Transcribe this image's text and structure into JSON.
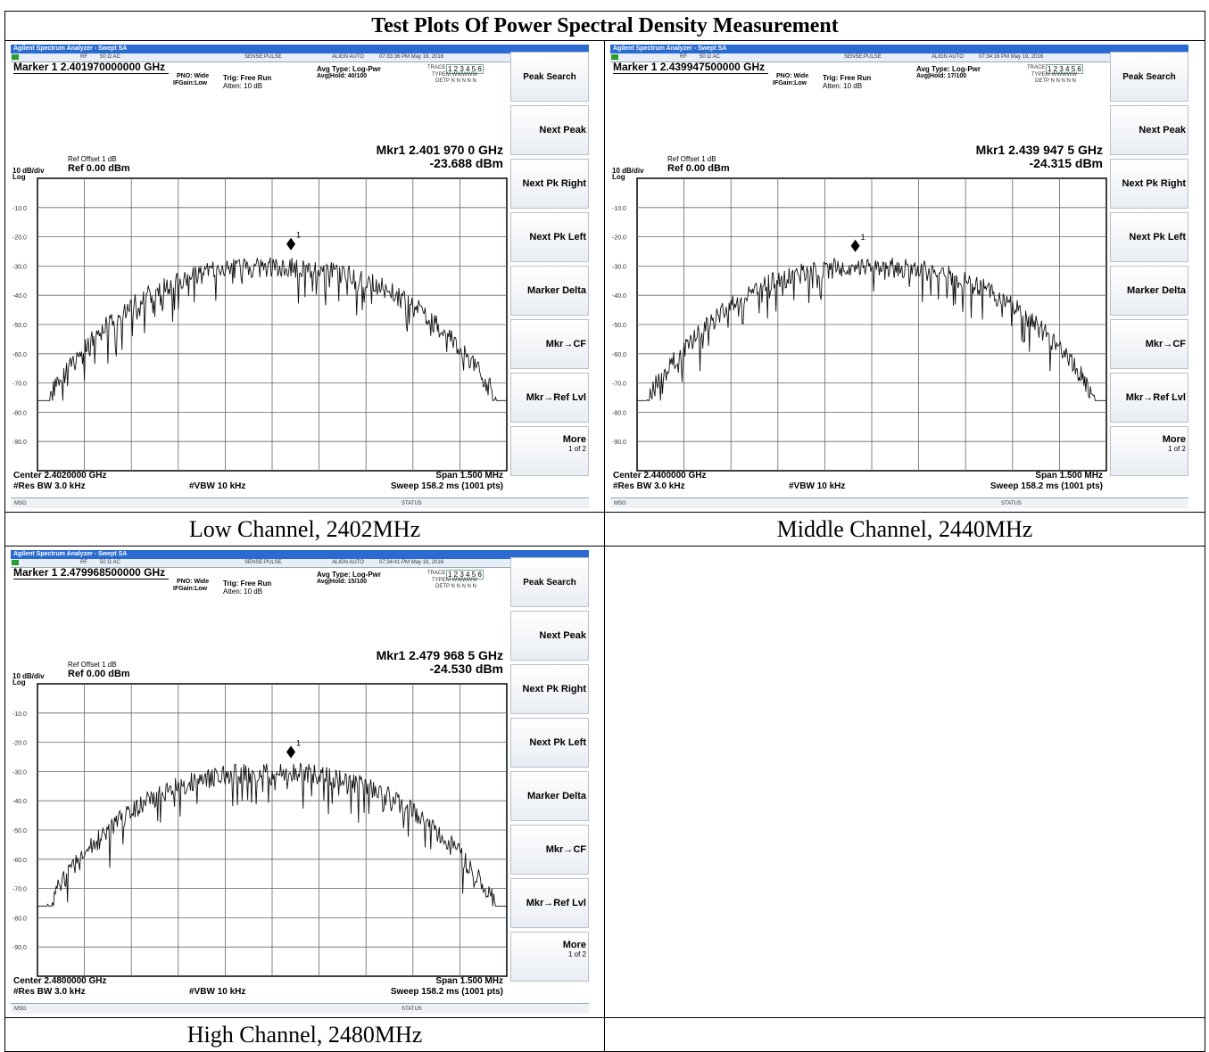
{
  "report_title": "Test Plots Of Power Spectral Density Measurement",
  "softkeys": {
    "peak_search": "Peak Search",
    "next_peak": "Next Peak",
    "next_pk_right": "Next Pk Right",
    "next_pk_left": "Next Pk Left",
    "marker_delta": "Marker Delta",
    "mkr_cf": "Mkr→CF",
    "mkr_reflvl": "Mkr→Ref Lvl",
    "more": "More",
    "more_page": "1 of 2"
  },
  "common": {
    "window_title": "Agilent Spectrum Analyzer - Swept SA",
    "rf": "RF",
    "impedance": "50 Ω  AC",
    "sense": "SENSE:PULSE",
    "align": "ALIGN AUTO",
    "pno": "PNO: Wide",
    "ifgain": "IFGain:Low",
    "trig": "Trig: Free Run",
    "atten": "Atten: 10 dB",
    "avg_type": "Avg Type: Log-Pwr",
    "trace_label": "TRACE",
    "trace_nums": "1 2 3 4 5 6",
    "type_label": "TYPE",
    "type_vals": "M WWWWW",
    "det_label": "DET",
    "det_vals": "P N N N N N",
    "ref_offset": "Ref Offset 1 dB",
    "scale": "10 dB/div",
    "ref": "Ref 0.00 dBm",
    "log": "Log",
    "res_bw": "#Res BW 3.0 kHz",
    "vbw": "#VBW 10 kHz",
    "span": "Span 1.500 MHz",
    "sweep": "Sweep  158.2 ms (1001 pts)",
    "msg": "MSG",
    "status": "STATUS",
    "y_ticks": [
      "-10.0",
      "-20.0",
      "-30.0",
      "-40.0",
      "-50.0",
      "-60.0",
      "-70.0",
      "-80.0",
      "-90.0"
    ],
    "marker_num": "1"
  },
  "panels": [
    {
      "caption": "Low Channel, 2402MHz",
      "timestamp": "07:33:36 PM May 19, 2016",
      "marker_header": "Marker 1  2.401970000000 GHz",
      "avg_hold": "Avg|Hold: 40/100",
      "mkr_freq": "Mkr1 2.401 970 0 GHz",
      "mkr_level": "-23.688 dBm",
      "center": "Center 2.4020000 GHz",
      "marker_x_frac": 0.54,
      "marker_level_dbm": -23.688
    },
    {
      "caption": "Middle Channel, 2440MHz",
      "timestamp": "07:34:16 PM May 19, 2016",
      "marker_header": "Marker 1  2.439947500000 GHz",
      "avg_hold": "Avg|Hold: 17/100",
      "mkr_freq": "Mkr1 2.439 947 5 GHz",
      "mkr_level": "-24.315 dBm",
      "center": "Center 2.4400000 GHz",
      "marker_x_frac": 0.465,
      "marker_level_dbm": -24.315
    },
    {
      "caption": "High Channel, 2480MHz",
      "timestamp": "07:34:41 PM May 19, 2016",
      "marker_header": "Marker 1  2.479968500000 GHz",
      "avg_hold": "Avg|Hold: 15/100",
      "mkr_freq": "Mkr1 2.479 968 5 GHz",
      "mkr_level": "-24.530 dBm",
      "center": "Center 2.4800000 GHz",
      "marker_x_frac": 0.54,
      "marker_level_dbm": -24.53
    }
  ]
}
